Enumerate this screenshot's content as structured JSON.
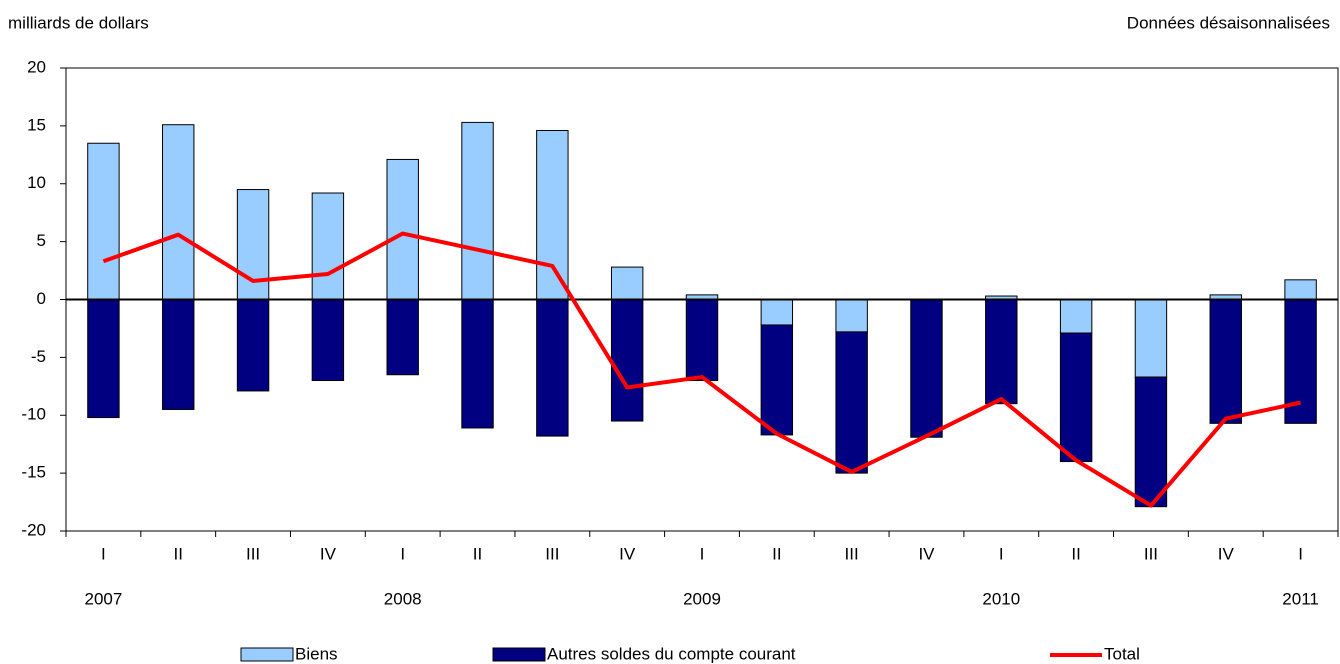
{
  "chart_data": {
    "type": "stacked_bar_line",
    "annotations": [
      "milliards de dollars",
      "Données désaisonnalisées"
    ],
    "categories": [
      "I",
      "II",
      "III",
      "IV",
      "I",
      "II",
      "III",
      "IV",
      "I",
      "II",
      "III",
      "IV",
      "I",
      "II",
      "III",
      "IV",
      "I"
    ],
    "years": [
      "2007",
      null,
      null,
      null,
      "2008",
      null,
      null,
      null,
      "2009",
      null,
      null,
      null,
      "2010",
      null,
      null,
      null,
      "2011"
    ],
    "series": [
      {
        "name": "Biens",
        "kind": "bar",
        "color": "#99ccff",
        "values": [
          13.5,
          15.1,
          9.5,
          9.2,
          12.1,
          15.3,
          14.6,
          2.8,
          0.4,
          -2.2,
          -2.8,
          0,
          0.3,
          -2.9,
          -6.7,
          0.4,
          1.7
        ]
      },
      {
        "name": "Autres soldes du compte courant",
        "kind": "bar",
        "color": "#000080",
        "values": [
          -10.2,
          -9.5,
          -7.9,
          -7.0,
          -6.5,
          -11.1,
          -11.8,
          -10.5,
          -7.0,
          -9.5,
          -12.2,
          -11.9,
          -9.0,
          -11.1,
          -11.2,
          -10.7,
          -10.7
        ]
      },
      {
        "name": "Total",
        "kind": "line",
        "color": "#ff0000",
        "values": [
          3.3,
          5.6,
          1.6,
          2.2,
          5.7,
          4.3,
          2.9,
          -7.6,
          -6.7,
          -11.6,
          -14.9,
          -11.8,
          -8.6,
          -13.9,
          -17.8,
          -10.3,
          -8.9
        ]
      }
    ],
    "ylim": [
      -20,
      20
    ],
    "yticks": [
      -20,
      -15,
      -10,
      -5,
      0,
      5,
      10,
      15,
      20
    ],
    "legend": "bottom"
  }
}
